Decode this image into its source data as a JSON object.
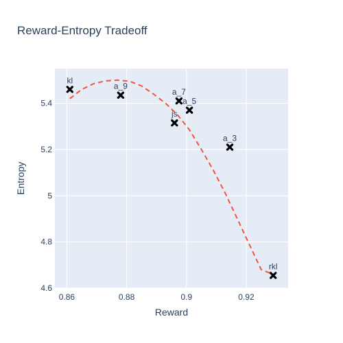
{
  "chart_data": {
    "type": "scatter",
    "title": "Reward-Entropy Tradeoff",
    "xlabel": "Reward",
    "ylabel": "Entropy",
    "xlim": [
      0.856,
      0.934
    ],
    "ylim": [
      4.6,
      5.55
    ],
    "x_ticks": [
      0.86,
      0.88,
      0.9,
      0.92
    ],
    "x_tick_labels": [
      "0.86",
      "0.88",
      "0.9",
      "0.92"
    ],
    "y_ticks": [
      4.6,
      4.8,
      5,
      5.2,
      5.4
    ],
    "y_tick_labels": [
      "4.6",
      "4.8",
      "5",
      "5.2",
      "5.4"
    ],
    "grid": true,
    "background": "#e5ecf6",
    "points": [
      {
        "label": "kl",
        "x": 0.861,
        "y": 5.46
      },
      {
        "label": "a_9",
        "x": 0.878,
        "y": 5.435
      },
      {
        "label": "a_7",
        "x": 0.8975,
        "y": 5.41
      },
      {
        "label": "js",
        "x": 0.896,
        "y": 5.315
      },
      {
        "label": "a_5",
        "x": 0.901,
        "y": 5.37
      },
      {
        "label": "a_3",
        "x": 0.9145,
        "y": 5.21
      },
      {
        "label": "rkl",
        "x": 0.929,
        "y": 4.655
      }
    ],
    "marker_color": "#000000",
    "fit_curve": {
      "style": "dashed",
      "color": "#ef553b",
      "x": [
        0.861,
        0.865,
        0.869,
        0.873,
        0.877,
        0.881,
        0.885,
        0.889,
        0.893,
        0.897,
        0.901,
        0.905,
        0.909,
        0.913,
        0.917,
        0.921,
        0.925,
        0.929
      ],
      "y": [
        5.42,
        5.46,
        5.485,
        5.497,
        5.5,
        5.495,
        5.475,
        5.44,
        5.4,
        5.35,
        5.285,
        5.2,
        5.11,
        5.01,
        4.9,
        4.79,
        4.68,
        4.66
      ]
    }
  }
}
